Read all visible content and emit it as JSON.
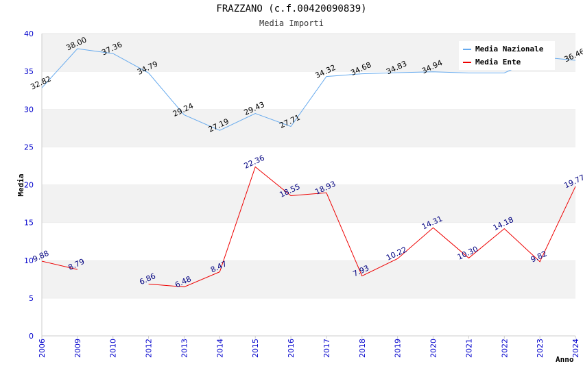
{
  "header": {
    "title": "FRAZZANO (c.f.00420090839)",
    "subtitle": "Media Importi"
  },
  "chart_data": {
    "type": "line",
    "title": "FRAZZANO (c.f.00420090839)",
    "subtitle": "Media Importi",
    "xlabel": "Anno",
    "ylabel": "Media",
    "categories": [
      "2006",
      "2009",
      "2010",
      "2012",
      "2013",
      "2014",
      "2015",
      "2016",
      "2017",
      "2018",
      "2019",
      "2020",
      "2021",
      "2022",
      "2023",
      "2024"
    ],
    "ylim": [
      0,
      40
    ],
    "yticks": [
      0,
      5,
      10,
      15,
      20,
      25,
      30,
      35,
      40
    ],
    "grid": "horizontal bands",
    "legend_position": "top-right",
    "series": [
      {
        "name": "Media Nazionale",
        "color": "#66aaee",
        "values": [
          32.82,
          38.0,
          37.36,
          34.79,
          29.24,
          27.19,
          29.43,
          27.71,
          34.32,
          34.68,
          34.83,
          34.94,
          34.8,
          34.8,
          36.9,
          36.46
        ],
        "labels": [
          "32.82",
          "38.00",
          "37.36",
          "34.79",
          "29.24",
          "27.19",
          "29.43",
          "27.71",
          "34.32",
          "34.68",
          "34.83",
          "34.94",
          "",
          "",
          "",
          "36.46"
        ]
      },
      {
        "name": "Media Ente",
        "color": "#ee0000",
        "values": [
          9.88,
          8.79,
          null,
          6.86,
          6.48,
          8.47,
          22.36,
          18.55,
          18.93,
          7.93,
          10.22,
          14.31,
          10.3,
          14.18,
          9.82,
          19.77
        ],
        "labels": [
          "9.88",
          "8.79",
          "",
          "6.86",
          "6.48",
          "8.47",
          "22.36",
          "18.55",
          "18.93",
          "7.93",
          "10.22",
          "14.31",
          "10.30",
          "14.18",
          "9.82",
          "19.77"
        ]
      }
    ]
  }
}
